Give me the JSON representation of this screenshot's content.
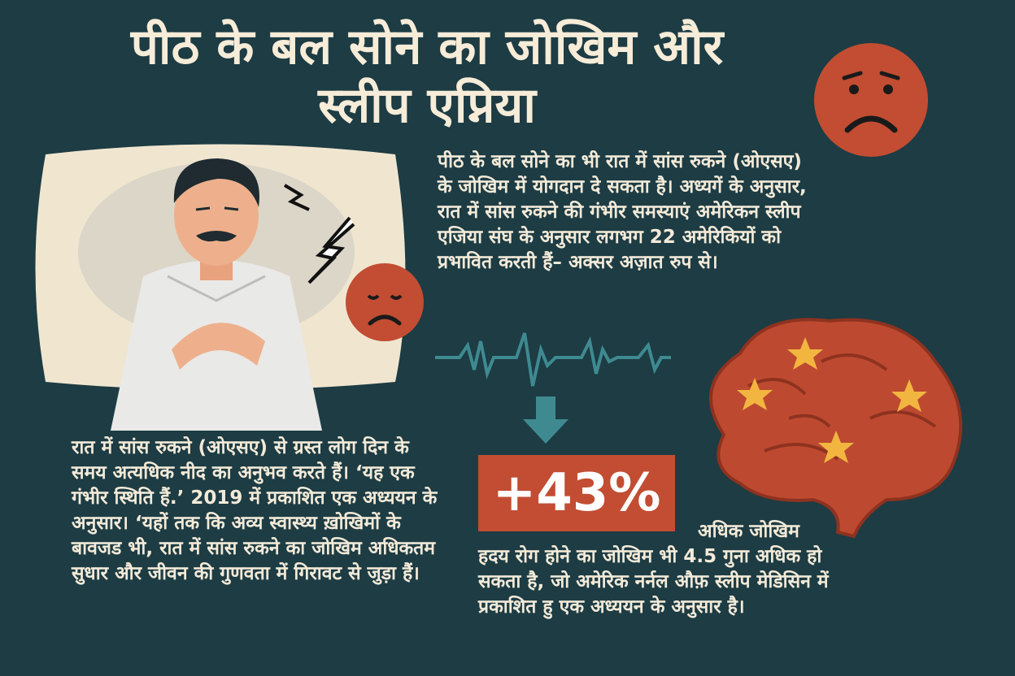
{
  "title": {
    "line1": "पीठ के बल सोने का जोखिम और",
    "line2": "स्लीप एप्निया"
  },
  "intro_text": "पीठ के बल सोने का भी रात में सांस रुकने (ओएसए) के जोखिम में योगदान दे सकता है। अध्यगें के अनुसार, रात में सांस रुकने की गंभीर समस्याएं अमेरिकन स्लीप एजिया संघ के अनुसार लगभग 22 अमेरिकियों को प्रभावित करती हैं– अक्सर अज़ात रुप से।",
  "left_text": "रात में सांस रुकने (ओएसए) से ग्रस्त लोग दिन के समय अत्यधिक नीद का अनुभव करते हैं। ‘यह एक गंभीर स्थिति हैं.’ 2019 में प्रकाशित एक अध्ययन के अनुसार। ‘यहों तक कि अव्य स्वास्थ्य ख़ोखिमों के बावजड भी, रात में सांस रुकने का जोखिम अधिकतम सुधार और जीवन की गुणवता में गिरावट से जुड़ा हैं।",
  "stat": {
    "value": "+43%",
    "label": "अधिक जोखिम"
  },
  "bottom_text": "हदय रोग होने का जोखिम भी 4.5 गुना अधिक हो सकता है, जो अमेरिक नर्नल औफ़ स्लीप मेडिसिन में प्रकाशित हु एक अध्ययन के अनुसार है।",
  "colors": {
    "background": "#1d3c44",
    "accent": "#c24d32",
    "text": "#f3ead8",
    "ecg": "#3f8a91",
    "star": "#f2b640"
  },
  "icons": [
    "sad-face-icon",
    "lightning-icon",
    "ecg-line-icon",
    "down-arrow-icon",
    "brain-icon",
    "sleeping-man-illustration"
  ]
}
